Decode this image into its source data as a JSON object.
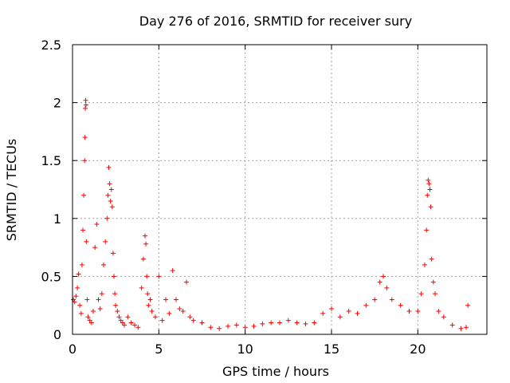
{
  "chart_data": {
    "type": "scatter",
    "title": "Day 276 of 2016, SRMTID for receiver sury",
    "xlabel": "GPS time / hours",
    "ylabel": "SRMTID / TECUs",
    "xlim": [
      0,
      24
    ],
    "ylim": [
      0,
      2.5
    ],
    "x_ticks": [
      0,
      5,
      10,
      15,
      20
    ],
    "y_ticks": [
      0,
      0.5,
      1,
      1.5,
      2,
      2.5
    ],
    "x_tick_labels": [
      "0",
      "5",
      "10",
      "15",
      "20"
    ],
    "y_tick_labels": [
      "0",
      "0.5",
      "1",
      "1.5",
      "2",
      "2.5"
    ],
    "grid": true,
    "marker": "+",
    "series": [
      {
        "name": "SRMTID",
        "color": "#ff0000",
        "x": [
          0.05,
          0.12,
          0.2,
          0.28,
          0.35,
          0.42,
          0.5,
          0.55,
          0.6,
          0.65,
          0.7,
          0.72,
          0.74,
          0.76,
          0.78,
          0.8,
          0.85,
          0.9,
          1.0,
          1.1,
          1.2,
          1.3,
          1.4,
          1.5,
          1.6,
          1.7,
          1.8,
          1.9,
          2.0,
          2.05,
          2.1,
          2.15,
          2.2,
          2.25,
          2.3,
          2.35,
          2.4,
          2.45,
          2.5,
          2.6,
          2.7,
          2.8,
          2.9,
          3.0,
          3.2,
          3.4,
          3.6,
          3.8,
          4.0,
          4.1,
          4.2,
          4.25,
          4.3,
          4.35,
          4.4,
          4.5,
          4.6,
          4.8,
          5.0,
          5.2,
          5.4,
          5.6,
          5.8,
          6.0,
          6.2,
          6.4,
          6.6,
          6.8,
          7.0,
          7.5,
          8.0,
          8.5,
          9.0,
          9.5,
          10.0,
          10.5,
          11.0,
          11.5,
          12.0,
          12.5,
          13.0,
          13.5,
          14.0,
          14.5,
          15.0,
          15.5,
          16.0,
          16.5,
          17.0,
          17.5,
          17.8,
          18.0,
          18.2,
          18.5,
          19.0,
          19.5,
          20.0,
          20.2,
          20.4,
          20.5,
          20.55,
          20.6,
          20.65,
          20.7,
          20.75,
          20.8,
          20.9,
          21.0,
          21.2,
          21.5,
          22.0,
          22.5,
          22.8,
          22.9
        ],
        "y": [
          0.3,
          0.28,
          0.33,
          0.4,
          0.52,
          0.25,
          0.18,
          0.6,
          0.9,
          1.2,
          1.5,
          1.7,
          1.95,
          2.02,
          1.98,
          0.8,
          0.3,
          0.15,
          0.12,
          0.1,
          0.2,
          0.75,
          0.95,
          0.3,
          0.22,
          0.35,
          0.6,
          0.8,
          1.0,
          1.2,
          1.44,
          1.3,
          1.15,
          1.25,
          1.1,
          0.7,
          0.5,
          0.35,
          0.25,
          0.2,
          0.15,
          0.12,
          0.1,
          0.08,
          0.15,
          0.1,
          0.08,
          0.06,
          0.4,
          0.65,
          0.85,
          0.78,
          0.5,
          0.35,
          0.25,
          0.3,
          0.2,
          0.15,
          0.5,
          0.12,
          0.3,
          0.18,
          0.55,
          0.3,
          0.22,
          0.2,
          0.45,
          0.15,
          0.12,
          0.1,
          0.06,
          0.05,
          0.07,
          0.08,
          0.06,
          0.07,
          0.09,
          0.1,
          0.1,
          0.12,
          0.1,
          0.09,
          0.1,
          0.18,
          0.22,
          0.15,
          0.2,
          0.18,
          0.25,
          0.3,
          0.45,
          0.5,
          0.4,
          0.3,
          0.25,
          0.2,
          0.2,
          0.35,
          0.6,
          0.9,
          1.2,
          1.33,
          1.3,
          1.25,
          1.1,
          0.65,
          0.45,
          0.35,
          0.2,
          0.15,
          0.08,
          0.05,
          0.06,
          0.25
        ]
      }
    ]
  }
}
